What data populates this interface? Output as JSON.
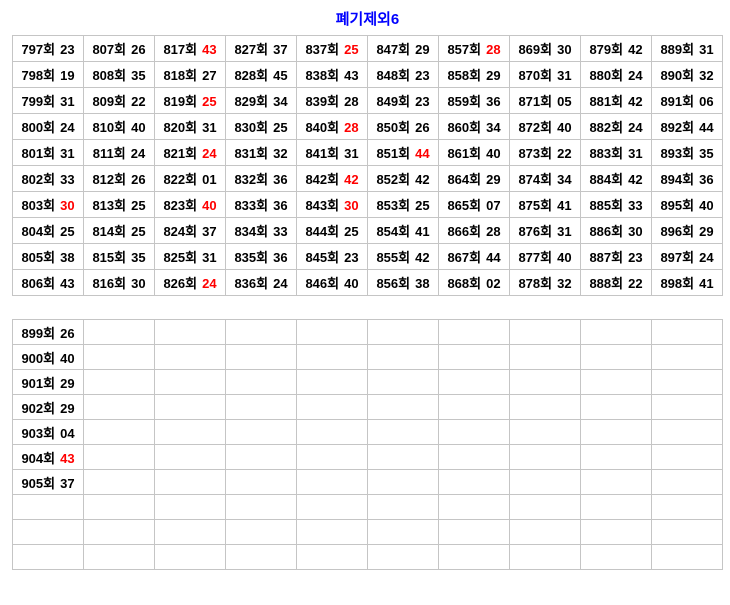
{
  "title": {
    "text": "폐기제외6",
    "color": "#0000ff"
  },
  "colors": {
    "accent_blue": "#0000ff",
    "highlight_red": "#ff0000",
    "excluded_gray": "#888888",
    "grid_border": "#c5c5c5",
    "text": "#000000",
    "background": "#ffffff"
  },
  "upper_table": [
    [
      {
        "label": "797회",
        "value": "23"
      },
      {
        "label": "807회",
        "value": "26"
      },
      {
        "label": "817회",
        "value": "43",
        "color": "red"
      },
      {
        "label": "827회",
        "value": "37"
      },
      {
        "label": "837회",
        "value": "25",
        "color": "red"
      },
      {
        "label": "847회",
        "value": "29"
      },
      {
        "label": "857회",
        "value": "28",
        "color": "red"
      },
      {
        "label": "869회",
        "value": "30"
      },
      {
        "label": "879회",
        "value": "42"
      },
      {
        "label": "889회",
        "value": "31"
      }
    ],
    [
      {
        "label": "798회",
        "value": "19"
      },
      {
        "label": "808회",
        "value": "35"
      },
      {
        "label": "818회",
        "value": "27"
      },
      {
        "label": "828회",
        "value": "45"
      },
      {
        "label": "838회",
        "value": "43"
      },
      {
        "label": "848회",
        "value": "23"
      },
      {
        "label": "858회",
        "value": "29"
      },
      {
        "label": "870회",
        "value": "31"
      },
      {
        "label": "880회",
        "value": "24"
      },
      {
        "label": "890회",
        "value": "32"
      }
    ],
    [
      {
        "label": "799회",
        "value": "31"
      },
      {
        "label": "809회",
        "value": "22"
      },
      {
        "label": "819회",
        "value": "25",
        "color": "red"
      },
      {
        "label": "829회",
        "value": "34"
      },
      {
        "label": "839회",
        "value": "28"
      },
      {
        "label": "849회",
        "value": "23"
      },
      {
        "label": "859회",
        "value": "36"
      },
      {
        "label": "871회",
        "value": "05"
      },
      {
        "label": "881회",
        "value": "42"
      },
      {
        "label": "891회",
        "value": "06"
      }
    ],
    [
      {
        "label": "800회",
        "value": "24"
      },
      {
        "label": "810회",
        "value": "40"
      },
      {
        "label": "820회",
        "value": "31"
      },
      {
        "label": "830회",
        "value": "25"
      },
      {
        "label": "840회",
        "value": "28",
        "color": "red"
      },
      {
        "label": "850회",
        "value": "26"
      },
      {
        "label": "860회",
        "value": "34"
      },
      {
        "label": "872회",
        "value": "40"
      },
      {
        "label": "882회",
        "value": "24"
      },
      {
        "label": "892회",
        "value": "44"
      }
    ],
    [
      {
        "label": "801회",
        "value": "31"
      },
      {
        "label": "811회",
        "value": "24"
      },
      {
        "label": "821회",
        "value": "24",
        "color": "red"
      },
      {
        "label": "831회",
        "value": "32"
      },
      {
        "label": "841회",
        "value": "31"
      },
      {
        "label": "851회",
        "value": "44",
        "color": "red"
      },
      {
        "label": "861회",
        "value": "40"
      },
      {
        "label": "873회",
        "value": "22"
      },
      {
        "label": "883회",
        "value": "31",
        "color": "gray"
      },
      {
        "label": "893회",
        "value": "35"
      }
    ],
    [
      {
        "label": "802회",
        "value": "33"
      },
      {
        "label": "812회",
        "value": "26"
      },
      {
        "label": "822회",
        "value": "01"
      },
      {
        "label": "832회",
        "value": "36"
      },
      {
        "label": "842회",
        "value": "42",
        "color": "red"
      },
      {
        "label": "852회",
        "value": "42"
      },
      {
        "label": "864회",
        "value": "29"
      },
      {
        "label": "874회",
        "value": "34"
      },
      {
        "label": "884회",
        "value": "42"
      },
      {
        "label": "894회",
        "value": "36"
      }
    ],
    [
      {
        "label": "803회",
        "value": "30",
        "color": "red"
      },
      {
        "label": "813회",
        "value": "25"
      },
      {
        "label": "823회",
        "value": "40",
        "color": "red"
      },
      {
        "label": "833회",
        "value": "36"
      },
      {
        "label": "843회",
        "value": "30",
        "color": "red"
      },
      {
        "label": "853회",
        "value": "25"
      },
      {
        "label": "865회",
        "value": "07"
      },
      {
        "label": "875회",
        "value": "41"
      },
      {
        "label": "885회",
        "value": "33"
      },
      {
        "label": "895회",
        "value": "40"
      }
    ],
    [
      {
        "label": "804회",
        "value": "25"
      },
      {
        "label": "814회",
        "value": "25"
      },
      {
        "label": "824회",
        "value": "37"
      },
      {
        "label": "834회",
        "value": "33"
      },
      {
        "label": "844회",
        "value": "25"
      },
      {
        "label": "854회",
        "value": "41"
      },
      {
        "label": "866회",
        "value": "28"
      },
      {
        "label": "876회",
        "value": "31"
      },
      {
        "label": "886회",
        "value": "30"
      },
      {
        "label": "896회",
        "value": "29"
      }
    ],
    [
      {
        "label": "805회",
        "value": "38"
      },
      {
        "label": "815회",
        "value": "35"
      },
      {
        "label": "825회",
        "value": "31"
      },
      {
        "label": "835회",
        "value": "36"
      },
      {
        "label": "845회",
        "value": "23"
      },
      {
        "label": "855회",
        "value": "42"
      },
      {
        "label": "867회",
        "value": "44"
      },
      {
        "label": "877회",
        "value": "40"
      },
      {
        "label": "887회",
        "value": "23"
      },
      {
        "label": "897회",
        "value": "24"
      }
    ],
    [
      {
        "label": "806회",
        "value": "43"
      },
      {
        "label": "816회",
        "value": "30"
      },
      {
        "label": "826회",
        "value": "24",
        "color": "red"
      },
      {
        "label": "836회",
        "value": "24"
      },
      {
        "label": "846회",
        "value": "40"
      },
      {
        "label": "856회",
        "value": "38"
      },
      {
        "label": "868회",
        "value": "02"
      },
      {
        "label": "878회",
        "value": "32"
      },
      {
        "label": "888회",
        "value": "22"
      },
      {
        "label": "898회",
        "value": "41"
      }
    ]
  ],
  "lower_table": [
    [
      {
        "label": "899회",
        "value": "26"
      },
      null,
      null,
      null,
      null,
      null,
      null,
      null,
      null,
      null
    ],
    [
      {
        "label": "900회",
        "value": "40"
      },
      null,
      null,
      null,
      null,
      null,
      null,
      null,
      null,
      null
    ],
    [
      {
        "label": "901회",
        "value": "29"
      },
      null,
      null,
      null,
      null,
      null,
      null,
      null,
      null,
      null
    ],
    [
      {
        "label": "902회",
        "value": "29"
      },
      null,
      null,
      null,
      null,
      null,
      null,
      null,
      null,
      null
    ],
    [
      {
        "label": "903회",
        "value": "04"
      },
      null,
      null,
      null,
      null,
      null,
      null,
      null,
      null,
      null
    ],
    [
      {
        "label": "904회",
        "value": "43",
        "color": "red"
      },
      null,
      null,
      null,
      null,
      null,
      null,
      null,
      null,
      null
    ],
    [
      {
        "label": "905회",
        "value": "37"
      },
      null,
      null,
      null,
      null,
      null,
      null,
      null,
      null,
      null
    ],
    [
      null,
      null,
      null,
      null,
      null,
      null,
      null,
      null,
      null,
      null
    ],
    [
      null,
      null,
      null,
      null,
      null,
      null,
      null,
      null,
      null,
      null
    ],
    [
      null,
      null,
      null,
      null,
      null,
      null,
      null,
      null,
      null,
      null
    ]
  ]
}
